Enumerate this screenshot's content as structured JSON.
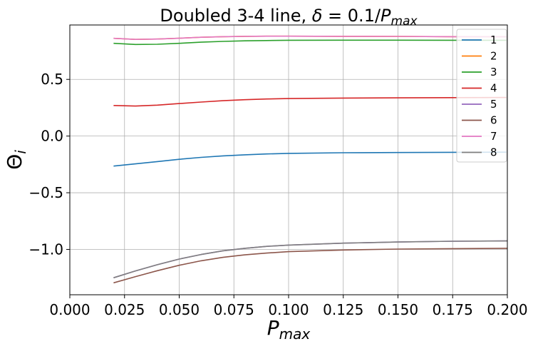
{
  "chart_data": {
    "type": "line",
    "title": "Doubled 3-4 line, δ = 0.1/P_max",
    "title_parts": {
      "prefix": "Doubled 3-4 line, ",
      "math_delta": "δ",
      "math_eq": " = 0.1/",
      "math_P": "P",
      "math_sub": "max"
    },
    "xlabel": {
      "main": "P",
      "sub": "max"
    },
    "ylabel": {
      "main": "Θ",
      "sub": "i"
    },
    "xlim": [
      0.0,
      0.2
    ],
    "ylim": [
      -1.4,
      0.98
    ],
    "grid": true,
    "legend_position": "top-right",
    "xticks": [
      0.0,
      0.025,
      0.05,
      0.075,
      0.1,
      0.125,
      0.15,
      0.175,
      0.2
    ],
    "xtick_labels": [
      "0.000",
      "0.025",
      "0.050",
      "0.075",
      "0.100",
      "0.125",
      "0.150",
      "0.175",
      "0.200"
    ],
    "yticks": [
      0.5,
      0.0,
      -0.5,
      -1.0
    ],
    "ytick_labels": [
      "0.5",
      "0.0",
      "−0.5",
      "−1.0"
    ],
    "x": [
      0.02,
      0.03,
      0.04,
      0.05,
      0.06,
      0.07,
      0.08,
      0.09,
      0.1,
      0.125,
      0.15,
      0.175,
      0.2
    ],
    "series": [
      {
        "name": "1",
        "color": "#1f77b4",
        "values": [
          -0.265,
          -0.245,
          -0.225,
          -0.205,
          -0.188,
          -0.175,
          -0.165,
          -0.158,
          -0.153,
          -0.147,
          -0.145,
          -0.143,
          -0.142
        ]
      },
      {
        "name": "2",
        "color": "#ff7f0e",
        "values": [
          0.862,
          0.853,
          0.856,
          0.863,
          0.872,
          0.877,
          0.88,
          0.881,
          0.881,
          0.88,
          0.879,
          0.877,
          0.876
        ]
      },
      {
        "name": "3",
        "color": "#2ca02c",
        "values": [
          0.818,
          0.808,
          0.81,
          0.818,
          0.828,
          0.835,
          0.84,
          0.843,
          0.845,
          0.846,
          0.846,
          0.845,
          0.845
        ]
      },
      {
        "name": "4",
        "color": "#d62728",
        "values": [
          0.27,
          0.265,
          0.273,
          0.287,
          0.3,
          0.312,
          0.321,
          0.327,
          0.331,
          0.335,
          0.337,
          0.339,
          0.34
        ]
      },
      {
        "name": "5",
        "color": "#9467bd",
        "values": [
          -1.25,
          -1.19,
          -1.135,
          -1.085,
          -1.045,
          -1.012,
          -0.99,
          -0.973,
          -0.962,
          -0.945,
          -0.935,
          -0.928,
          -0.925
        ]
      },
      {
        "name": "6",
        "color": "#8c564b",
        "values": [
          -1.295,
          -1.24,
          -1.188,
          -1.14,
          -1.1,
          -1.07,
          -1.048,
          -1.032,
          -1.02,
          -1.005,
          -0.997,
          -0.993,
          -0.99
        ]
      },
      {
        "name": "7",
        "color": "#e377c2",
        "values": [
          0.862,
          0.853,
          0.856,
          0.863,
          0.872,
          0.877,
          0.88,
          0.881,
          0.881,
          0.88,
          0.879,
          0.877,
          0.876
        ]
      },
      {
        "name": "8",
        "color": "#7f7f7f",
        "values": [
          -1.25,
          -1.19,
          -1.135,
          -1.085,
          -1.045,
          -1.012,
          -0.99,
          -0.973,
          -0.962,
          -0.945,
          -0.935,
          -0.928,
          -0.925
        ]
      }
    ]
  }
}
